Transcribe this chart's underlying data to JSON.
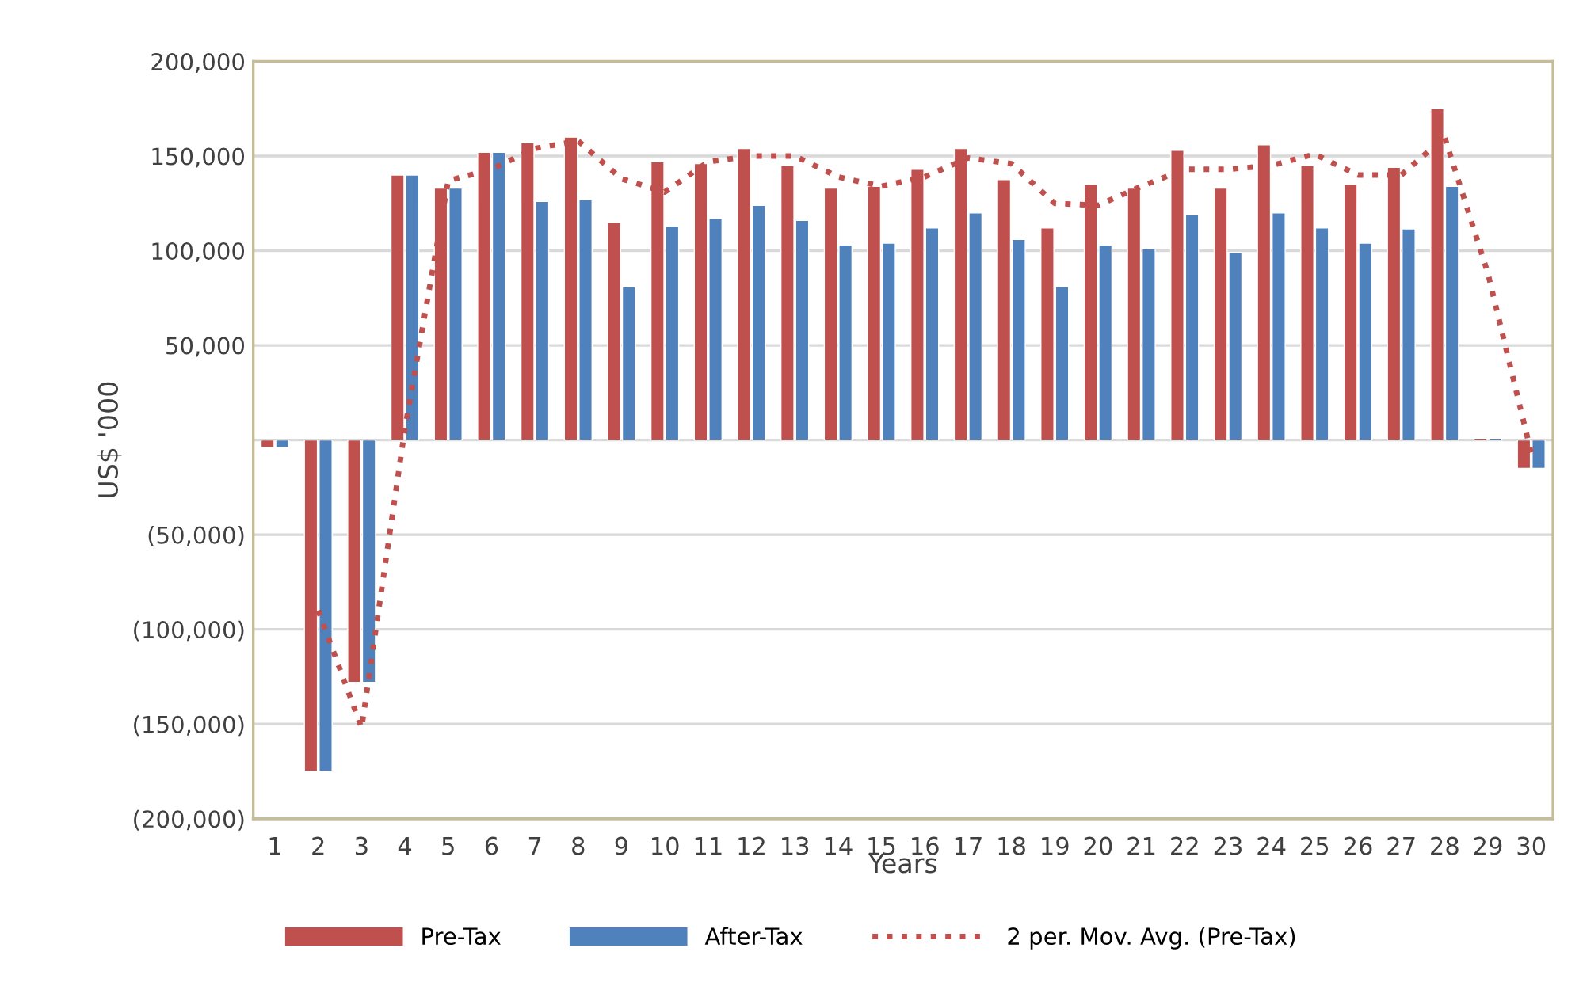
{
  "chart_data": {
    "type": "bar",
    "xlabel": "Years",
    "ylabel": "US$ '000",
    "categories": [
      "1",
      "2",
      "3",
      "4",
      "5",
      "6",
      "7",
      "8",
      "9",
      "10",
      "11",
      "12",
      "13",
      "14",
      "15",
      "16",
      "17",
      "18",
      "19",
      "20",
      "21",
      "22",
      "23",
      "24",
      "25",
      "26",
      "27",
      "28",
      "29",
      "30"
    ],
    "series": [
      {
        "name": "Pre-Tax",
        "color": "#c0504d",
        "values": [
          -4000,
          -175000,
          -128000,
          140000,
          133000,
          152000,
          157000,
          160000,
          115000,
          147000,
          146000,
          154000,
          145000,
          133000,
          134000,
          143000,
          154000,
          137500,
          112000,
          135000,
          133000,
          153000,
          133000,
          156000,
          145000,
          135000,
          144000,
          175000,
          1000,
          -15000
        ]
      },
      {
        "name": "After-Tax",
        "color": "#4f81bd",
        "values": [
          -4000,
          -175000,
          -128000,
          140000,
          133000,
          152000,
          126000,
          127000,
          81000,
          113000,
          117000,
          124000,
          116000,
          103000,
          104000,
          112000,
          120000,
          106000,
          81000,
          103000,
          101000,
          119000,
          99000,
          120000,
          112000,
          104000,
          111500,
          134000,
          1000,
          -15000
        ]
      },
      {
        "name": "2 per. Mov. Avg. (Pre-Tax)",
        "type": "line",
        "color": "#c0504d",
        "line_style": "dotted",
        "marker": "none",
        "values": [
          null,
          -90000,
          -152000,
          6000,
          137000,
          143000,
          154000,
          158000,
          138000,
          131000,
          147000,
          150000,
          150000,
          139000,
          134000,
          139000,
          149000,
          146000,
          125000,
          124000,
          134000,
          143000,
          143000,
          145000,
          151000,
          140000,
          140000,
          160000,
          88000,
          -7000
        ]
      }
    ],
    "ylim": [
      -200000,
      200000
    ],
    "yticks": [
      {
        "value": -200000,
        "label": "(200,000)"
      },
      {
        "value": -150000,
        "label": "(150,000)"
      },
      {
        "value": -100000,
        "label": "(100,000)"
      },
      {
        "value": -50000,
        "label": "(50,000)"
      },
      {
        "value": 0,
        "label": null
      },
      {
        "value": 50000,
        "label": "50,000"
      },
      {
        "value": 100000,
        "label": "100,000"
      },
      {
        "value": 150000,
        "label": "150,000"
      },
      {
        "value": 200000,
        "label": "200,000"
      }
    ],
    "grid": "y",
    "legend": "bottom"
  }
}
